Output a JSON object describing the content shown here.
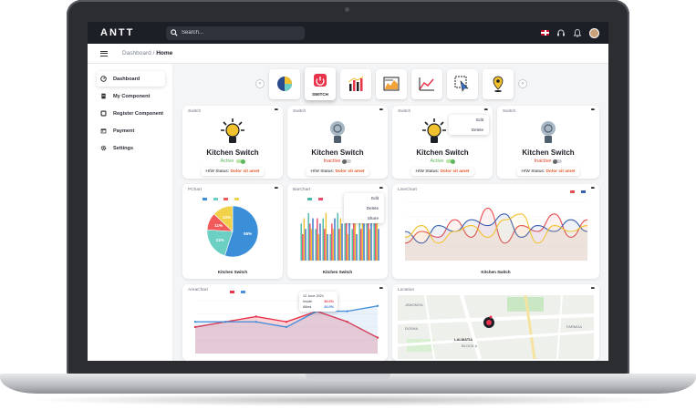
{
  "app": {
    "logo": "ANTT"
  },
  "search": {
    "placeholder": "Search..."
  },
  "breadcrumb": {
    "parent": "Dashboard",
    "sep": " / ",
    "current": "Home"
  },
  "sidebar": {
    "items": [
      {
        "label": "Dashboard",
        "icon": "gauge-icon"
      },
      {
        "label": "My Component",
        "icon": "document-icon"
      },
      {
        "label": "Register Component",
        "icon": "square-icon"
      },
      {
        "label": "Payment",
        "icon": "calendar-icon"
      },
      {
        "label": "Settings",
        "icon": "gear-icon"
      }
    ]
  },
  "widget_bar": {
    "active_label": "SWITCH"
  },
  "switches": [
    {
      "header": "Switch",
      "title": "Kitchen Switch",
      "status": "Active",
      "hw_label": "H/W Status:",
      "hw_value": "Dolor sit amet"
    },
    {
      "header": "Switch",
      "title": "Kitchen Switch",
      "status": "Inactive",
      "hw_label": "H/W Status:",
      "hw_value": "Dolor sit amet"
    },
    {
      "header": "Switch",
      "title": "Kitchen Switch",
      "status": "Active",
      "hw_label": "H/W Status:",
      "hw_value": "Dolor sit amet"
    },
    {
      "header": "Switch",
      "title": "Kitchen Switch",
      "status": "Inactive",
      "hw_label": "H/W Status:",
      "hw_value": "Dolor sit amet"
    }
  ],
  "switch_menu": {
    "edit": "Edit",
    "delete": "Delete"
  },
  "chart_menu": {
    "edit": "Edit",
    "delete": "Delete",
    "share": "Share"
  },
  "colors": {
    "active": "#5cb85c",
    "inactive": "#e2452b",
    "topbar": "#1c1f26",
    "accent_red": "#e8334a",
    "accent_blue": "#3a73c9",
    "accent_yellow": "#f2c12e",
    "accent_teal": "#6ccfc4"
  },
  "charts": {
    "pie": {
      "header": "PChart",
      "footer": "Kitchen Switch"
    },
    "bar": {
      "header": "BarChart",
      "footer": "Kitchen Switch"
    },
    "line": {
      "header": "LineChart",
      "footer": "Kitchen Switch"
    },
    "area": {
      "header": "AreaChart"
    },
    "map": {
      "header": "Location",
      "places": [
        "JANONIYA",
        "LALMATIA",
        "SUBAH",
        "FARMGA",
        "SOBHANBAG",
        "BLOCK A",
        "DOSHA"
      ]
    }
  },
  "chart_data": [
    {
      "type": "pie",
      "values": [
        55,
        21,
        11,
        13
      ],
      "labels": [
        "55%",
        "21%",
        "11%",
        "13%"
      ],
      "colors": [
        "#3a8fd8",
        "#6ccfc4",
        "#f05a5a",
        "#f2d14a"
      ]
    },
    {
      "type": "bar",
      "series": [
        {
          "values": [
            7,
            9,
            6,
            8,
            5,
            9,
            7,
            6,
            8,
            7,
            9
          ]
        },
        {
          "values": [
            5,
            7,
            8,
            6,
            7,
            6,
            8,
            9,
            6,
            8,
            7
          ]
        },
        {
          "values": [
            8,
            6,
            5,
            9,
            6,
            8,
            5,
            7,
            9,
            6,
            8
          ]
        },
        {
          "values": [
            6,
            8,
            7,
            5,
            8,
            7,
            9,
            5,
            7,
            9,
            6
          ]
        }
      ],
      "colors": [
        "#4ab8a8",
        "#e84d6a",
        "#f2c12e",
        "#3a73c9"
      ],
      "ylim": [
        0,
        10
      ]
    },
    {
      "type": "line",
      "series": [
        {
          "color": "#e84d4d",
          "values": [
            3,
            5,
            4,
            7,
            4,
            9,
            3,
            6,
            5,
            8,
            4,
            7
          ]
        },
        {
          "color": "#3a5fb0",
          "values": [
            5,
            3,
            6,
            5,
            7,
            6,
            8,
            4,
            6,
            5,
            7,
            5
          ]
        },
        {
          "color": "#f2c12e",
          "values": [
            4,
            6,
            3,
            5,
            6,
            4,
            7,
            8,
            3,
            6,
            5,
            6
          ]
        }
      ],
      "ylim": [
        0,
        10
      ]
    },
    {
      "type": "area",
      "tooltip": {
        "date": "12 June 2021",
        "rows": [
          {
            "label": "Inside",
            "value": "30.0%"
          },
          {
            "label": "Allied",
            "value": "20.0%"
          }
        ]
      },
      "series": [
        {
          "color": "#e8334a",
          "values": [
            5,
            6,
            7,
            6,
            8,
            6,
            3
          ]
        },
        {
          "color": "#4a90d9",
          "values": [
            6,
            6,
            6,
            5,
            8,
            8,
            9
          ]
        }
      ],
      "ylim": [
        0,
        10
      ]
    }
  ]
}
